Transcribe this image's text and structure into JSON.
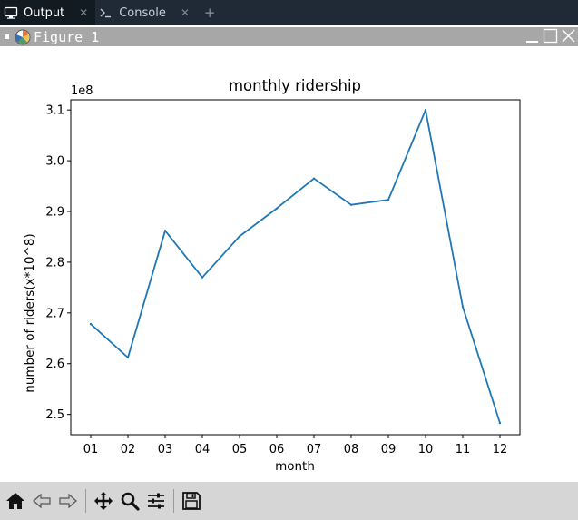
{
  "tabs": [
    {
      "label": "Output",
      "icon": "monitor-icon",
      "active": true
    },
    {
      "label": "Console",
      "icon": "terminal-icon",
      "active": false
    }
  ],
  "figure": {
    "title": "Figure 1"
  },
  "chart_data": {
    "type": "line",
    "title": "monthly ridership",
    "xlabel": "month",
    "ylabel": "number of riders(x*10^8)",
    "y_offset_label": "1e8",
    "categories": [
      "01",
      "02",
      "03",
      "04",
      "05",
      "06",
      "07",
      "08",
      "09",
      "10",
      "11",
      "12"
    ],
    "series": [
      {
        "values": [
          2.678,
          2.612,
          2.862,
          2.77,
          2.851,
          2.906,
          2.965,
          2.913,
          2.923,
          3.1,
          2.712,
          2.483
        ],
        "color": "#1f77b4"
      }
    ],
    "yticks": [
      "2.5",
      "2.6",
      "2.7",
      "2.8",
      "2.9",
      "3.0",
      "3.1"
    ],
    "ylim": [
      2.46,
      3.12
    ],
    "grid": false
  },
  "toolbar": {
    "tools": [
      "home-icon",
      "back-arrow-icon",
      "forward-arrow-icon",
      "pan-move-icon",
      "zoom-magnifier-icon",
      "configure-subplots-icon",
      "save-icon"
    ]
  }
}
